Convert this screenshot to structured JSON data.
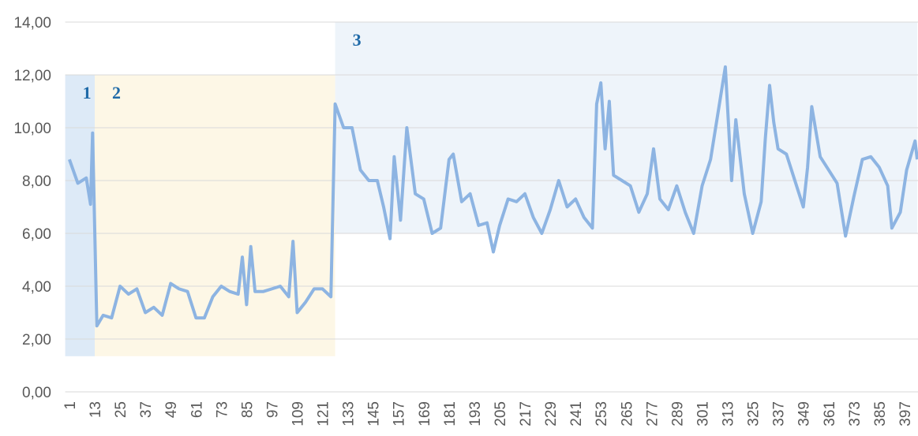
{
  "chart_data": {
    "type": "line",
    "xlim": [
      -1,
      403
    ],
    "xticks": [
      1,
      13,
      25,
      37,
      49,
      61,
      73,
      85,
      97,
      109,
      121,
      133,
      145,
      157,
      169,
      181,
      193,
      205,
      217,
      229,
      241,
      253,
      265,
      277,
      289,
      301,
      313,
      325,
      337,
      349,
      361,
      373,
      385,
      397
    ],
    "ylim": [
      0,
      14
    ],
    "yticks": [
      {
        "value": 0,
        "label": "0,00"
      },
      {
        "value": 2,
        "label": "2,00"
      },
      {
        "value": 4,
        "label": "4,00"
      },
      {
        "value": 6,
        "label": "6,00"
      },
      {
        "value": 8,
        "label": "8,00"
      },
      {
        "value": 10,
        "label": "10,00"
      },
      {
        "value": 12,
        "label": "12,00"
      },
      {
        "value": 14,
        "label": "14,00"
      }
    ],
    "grid": true,
    "regions": [
      {
        "label": "1",
        "x": [
          -1,
          13
        ],
        "y": [
          1.35,
          12
        ],
        "color": "#ddeaf7"
      },
      {
        "label": "2",
        "x": [
          13,
          127
        ],
        "y": [
          1.35,
          12
        ],
        "color": "#fdf7e6"
      },
      {
        "label": "3",
        "x": [
          127,
          403
        ],
        "y": [
          6,
          14
        ],
        "color": "#eef4fa"
      }
    ],
    "series": [
      {
        "color": "#8db4e2",
        "x": [
          1,
          5,
          9,
          11,
          12,
          14,
          17,
          21,
          25,
          29,
          33,
          37,
          41,
          45,
          49,
          53,
          57,
          61,
          65,
          69,
          73,
          77,
          81,
          83,
          85,
          87,
          89,
          93,
          97,
          101,
          105,
          107,
          109,
          113,
          117,
          121,
          125,
          127,
          131,
          135,
          139,
          143,
          147,
          150,
          153,
          155,
          158,
          161,
          165,
          169,
          173,
          177,
          181,
          183,
          187,
          191,
          195,
          199,
          202,
          205,
          209,
          213,
          217,
          221,
          225,
          229,
          233,
          237,
          241,
          245,
          249,
          251,
          253,
          255,
          257,
          259,
          263,
          267,
          271,
          275,
          278,
          281,
          285,
          289,
          293,
          297,
          301,
          305,
          309,
          312,
          315,
          317,
          321,
          325,
          329,
          331,
          333,
          335,
          337,
          341,
          345,
          349,
          351,
          353,
          357,
          361,
          365,
          369,
          373,
          377,
          381,
          385,
          389,
          391,
          395,
          398,
          402,
          403
        ],
        "values": [
          8.8,
          7.9,
          8.1,
          7.1,
          9.8,
          2.5,
          2.9,
          2.8,
          4.0,
          3.7,
          3.9,
          3.0,
          3.2,
          2.9,
          4.1,
          3.9,
          3.8,
          2.8,
          2.8,
          3.6,
          4.0,
          3.8,
          3.7,
          5.1,
          3.3,
          5.5,
          3.8,
          3.8,
          3.9,
          4.0,
          3.6,
          5.7,
          3.0,
          3.4,
          3.9,
          3.9,
          3.6,
          10.9,
          10.0,
          10.0,
          8.4,
          8.0,
          8.0,
          7.0,
          5.8,
          8.9,
          6.5,
          10.0,
          7.5,
          7.3,
          6.0,
          6.2,
          8.8,
          9.0,
          7.2,
          7.5,
          6.3,
          6.4,
          5.3,
          6.3,
          7.3,
          7.2,
          7.5,
          6.6,
          6.0,
          6.9,
          8.0,
          7.0,
          7.3,
          6.6,
          6.2,
          10.9,
          11.7,
          9.2,
          11.0,
          8.2,
          8.0,
          7.8,
          6.8,
          7.5,
          9.2,
          7.3,
          6.9,
          7.8,
          6.8,
          6.0,
          7.8,
          8.8,
          10.8,
          12.3,
          8.0,
          10.3,
          7.5,
          6.0,
          7.2,
          9.6,
          11.6,
          10.2,
          9.2,
          9.0,
          8.0,
          7.0,
          8.5,
          10.8,
          8.9,
          8.4,
          7.9,
          5.9,
          7.4,
          8.8,
          8.9,
          8.5,
          7.8,
          6.2,
          6.8,
          8.4,
          9.5,
          8.8
        ]
      }
    ]
  }
}
